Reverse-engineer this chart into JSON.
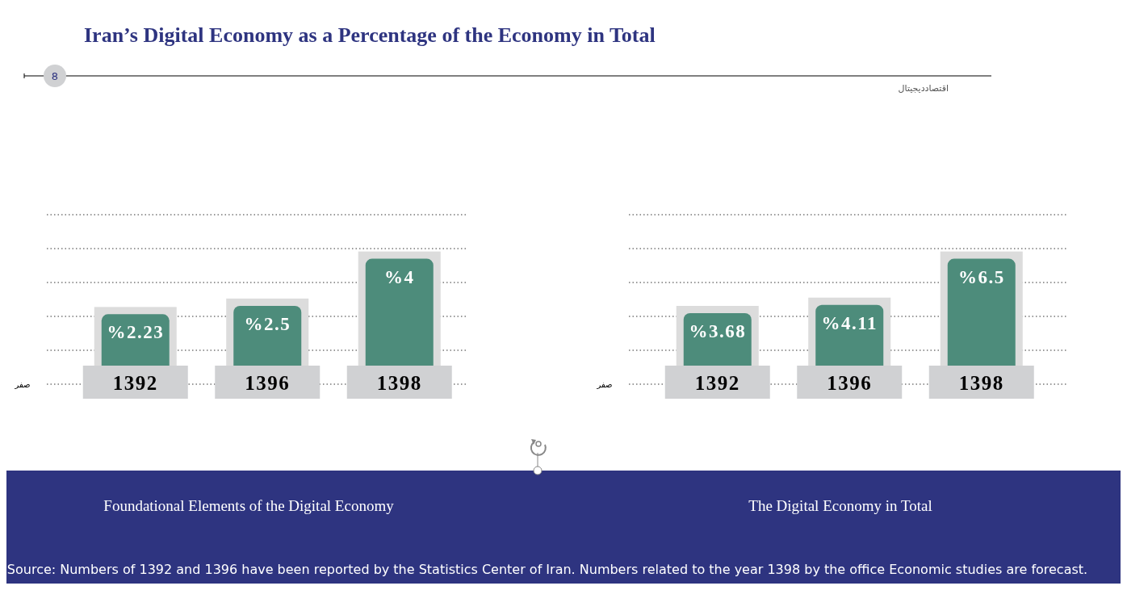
{
  "chart_data": [
    {
      "type": "bar",
      "title": "Foundational Elements of the Digital Economy",
      "categories": [
        "1392",
        "1396",
        "1398"
      ],
      "values": [
        2.23,
        2.5,
        4
      ],
      "value_labels": [
        "%2.23",
        "%2.5",
        "%4"
      ],
      "color": "#4d8c7b",
      "grid": "y",
      "annotations": [
        "Iran’s Digital Economy as a Percentage of the Economy in Total",
        "8",
        "اقتصاددیجیتال",
        "Source: Numbers of 1392 and 1396 have been reported by the Statistics Center of Iran. Numbers related to the year 1398 by the office Economic studies are forecast.",
        "صفر"
      ]
    },
    {
      "type": "bar",
      "title": "The Digital Economy in Total",
      "categories": [
        "1392",
        "1396",
        "1398"
      ],
      "values": [
        3.68,
        4.11,
        6.5
      ],
      "value_labels": [
        "%3.68",
        "%4.11",
        "%6.5"
      ],
      "color": "#4d8c7b",
      "grid": "y",
      "annotations": [
        "صفر"
      ]
    }
  ]
}
